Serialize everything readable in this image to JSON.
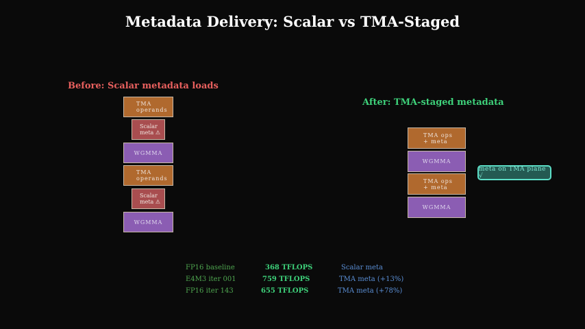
{
  "title": "Metadata Delivery: Scalar vs TMA-Staged",
  "before": {
    "heading": "Before: Scalar metadata loads",
    "color": "#e8605e",
    "blocks": [
      {
        "l1": "TMA",
        "l2": "operands"
      },
      {
        "l1": "Scalar",
        "l2": "meta ⚠"
      },
      {
        "l1": "WGMMA"
      },
      {
        "l1": "TMA",
        "l2": "operands"
      },
      {
        "l1": "Scalar",
        "l2": "meta ⚠"
      },
      {
        "l1": "WGMMA"
      }
    ]
  },
  "after": {
    "heading": "After: TMA-staged metadata",
    "color": "#3ed17a",
    "blocks": [
      {
        "l1": "TMA ops",
        "l2": "+ meta"
      },
      {
        "l1": "WGMMA"
      },
      {
        "l1": "TMA ops",
        "l2": "+ meta"
      },
      {
        "l1": "WGMMA"
      }
    ],
    "badge": "meta on TMA plane √"
  },
  "stats": [
    {
      "config": "FP16 baseline",
      "perf": "368 TFLOPS",
      "note": "Scalar meta"
    },
    {
      "config": "E4M3 iter 001",
      "perf": "759 TFLOPS",
      "note": "TMA meta (+13%)"
    },
    {
      "config": "FP16 iter 143",
      "perf": "655 TFLOPS",
      "note": "TMA meta (+78%)"
    }
  ]
}
